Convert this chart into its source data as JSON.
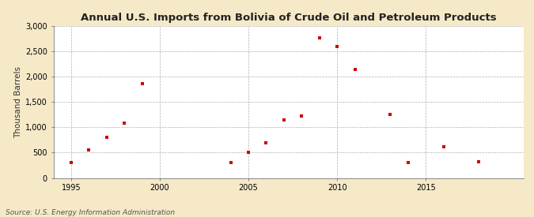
{
  "title": "Annual U.S. Imports from Bolivia of Crude Oil and Petroleum Products",
  "ylabel": "Thousand Barrels",
  "source": "Source: U.S. Energy Information Administration",
  "background_color": "#f5e9c8",
  "plot_background_color": "#ffffff",
  "marker_color": "#cc0000",
  "years": [
    1995,
    1996,
    1997,
    1998,
    1999,
    2004,
    2005,
    2006,
    2007,
    2008,
    2009,
    2010,
    2011,
    2013,
    2014,
    2016,
    2018
  ],
  "values": [
    310,
    560,
    800,
    1090,
    1860,
    300,
    510,
    690,
    1150,
    1230,
    2760,
    2590,
    2150,
    1250,
    300,
    620,
    320
  ],
  "xlim": [
    1994.0,
    2020.5
  ],
  "ylim": [
    0,
    3000
  ],
  "yticks": [
    0,
    500,
    1000,
    1500,
    2000,
    2500,
    3000
  ],
  "xticks": [
    1995,
    2000,
    2005,
    2010,
    2015
  ],
  "title_fontsize": 9.5,
  "label_fontsize": 7.5,
  "tick_fontsize": 7,
  "source_fontsize": 6.5,
  "marker_size": 12
}
